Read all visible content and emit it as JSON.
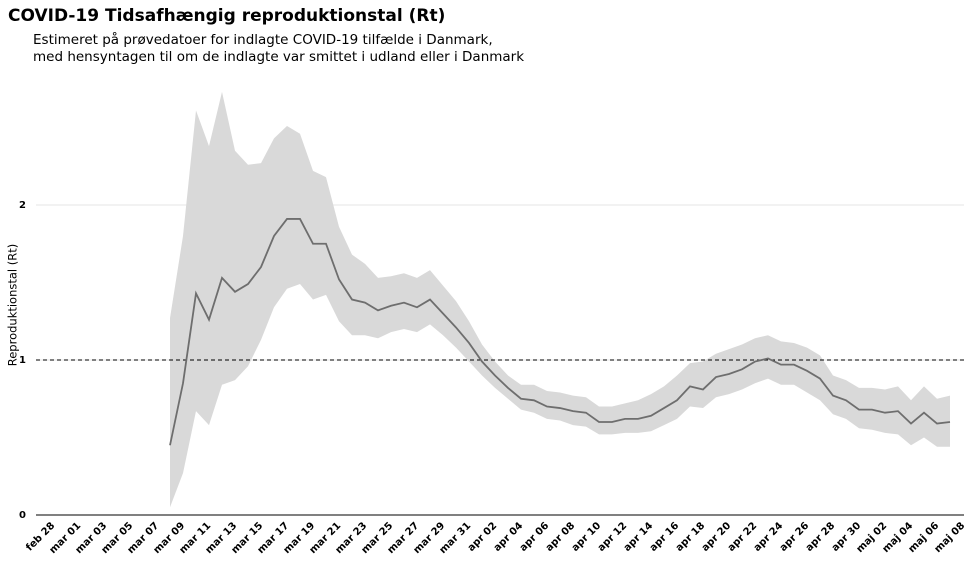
{
  "chart_data": {
    "type": "line",
    "title": "COVID-19 Tidsafhængig reproduktionstal (Rt)",
    "subtitle": [
      "Estimeret på prøvedatoer for indlagte COVID-19 tilfælde i Danmark,",
      "med hensyntagen til om de indlagte var smittet i udland eller i Danmark"
    ],
    "ylabel": "Reproduktionstal (Rt)",
    "categories": [
      "feb 28",
      null,
      "mar 01",
      null,
      "mar 03",
      null,
      "mar 05",
      null,
      "mar 07",
      null,
      "mar 09",
      null,
      "mar 11",
      null,
      "mar 13",
      null,
      "mar 15",
      null,
      "mar 17",
      null,
      "mar 19",
      null,
      "mar 21",
      null,
      "mar 23",
      null,
      "mar 25",
      null,
      "mar 27",
      null,
      "mar 29",
      null,
      "mar 31",
      null,
      "apr 02",
      null,
      "apr 04",
      null,
      "apr 06",
      null,
      "apr 08",
      null,
      "apr 10",
      null,
      "apr 12",
      null,
      "apr 14",
      null,
      "apr 16",
      null,
      "apr 18",
      null,
      "apr 20",
      null,
      "apr 22",
      null,
      "apr 24",
      null,
      "apr 26",
      null,
      "apr 28",
      null,
      "apr 30",
      null,
      "maj 02",
      null,
      "maj 04",
      null,
      "maj 06",
      null,
      "maj 08"
    ],
    "values": [
      null,
      null,
      null,
      null,
      null,
      null,
      null,
      null,
      null,
      0.45,
      0.85,
      1.43,
      1.26,
      1.53,
      1.44,
      1.49,
      1.6,
      1.8,
      1.91,
      1.91,
      1.75,
      1.75,
      1.52,
      1.39,
      1.37,
      1.32,
      1.35,
      1.37,
      1.34,
      1.39,
      1.3,
      1.21,
      1.11,
      0.99,
      0.9,
      0.82,
      0.75,
      0.74,
      0.7,
      0.69,
      0.67,
      0.66,
      0.6,
      0.6,
      0.62,
      0.62,
      0.64,
      0.69,
      0.74,
      0.83,
      0.81,
      0.89,
      0.91,
      0.94,
      0.99,
      1.01,
      0.97,
      0.97,
      0.93,
      0.88,
      0.77,
      0.74,
      0.68,
      0.68,
      0.66,
      0.67,
      0.59,
      0.66,
      0.59,
      0.6,
      null
    ],
    "upper": [
      null,
      null,
      null,
      null,
      null,
      null,
      null,
      null,
      null,
      1.27,
      1.8,
      2.61,
      2.38,
      2.73,
      2.35,
      2.26,
      2.27,
      2.43,
      2.51,
      2.46,
      2.22,
      2.18,
      1.86,
      1.68,
      1.62,
      1.53,
      1.54,
      1.56,
      1.53,
      1.58,
      1.48,
      1.38,
      1.25,
      1.1,
      0.99,
      0.9,
      0.84,
      0.84,
      0.8,
      0.79,
      0.77,
      0.76,
      0.7,
      0.7,
      0.72,
      0.74,
      0.78,
      0.83,
      0.9,
      0.98,
      0.99,
      1.04,
      1.07,
      1.1,
      1.14,
      1.16,
      1.12,
      1.11,
      1.08,
      1.03,
      0.9,
      0.87,
      0.82,
      0.82,
      0.81,
      0.83,
      0.74,
      0.83,
      0.75,
      0.77,
      null
    ],
    "lower": [
      null,
      null,
      null,
      null,
      null,
      null,
      null,
      null,
      null,
      0.05,
      0.27,
      0.67,
      0.58,
      0.84,
      0.87,
      0.96,
      1.13,
      1.34,
      1.46,
      1.49,
      1.39,
      1.42,
      1.25,
      1.16,
      1.16,
      1.14,
      1.18,
      1.2,
      1.18,
      1.23,
      1.16,
      1.08,
      0.99,
      0.9,
      0.82,
      0.75,
      0.68,
      0.66,
      0.62,
      0.61,
      0.58,
      0.57,
      0.52,
      0.52,
      0.53,
      0.53,
      0.54,
      0.58,
      0.62,
      0.7,
      0.69,
      0.76,
      0.78,
      0.81,
      0.85,
      0.88,
      0.84,
      0.84,
      0.79,
      0.74,
      0.65,
      0.62,
      0.56,
      0.55,
      0.53,
      0.52,
      0.45,
      0.5,
      0.44,
      0.44,
      null
    ],
    "color": "#6e6e6e",
    "band_color": "#d9d9d9",
    "ylim": [
      0,
      2.8
    ],
    "yticks": [
      0,
      1,
      2
    ],
    "hline": 1,
    "grid": true
  }
}
